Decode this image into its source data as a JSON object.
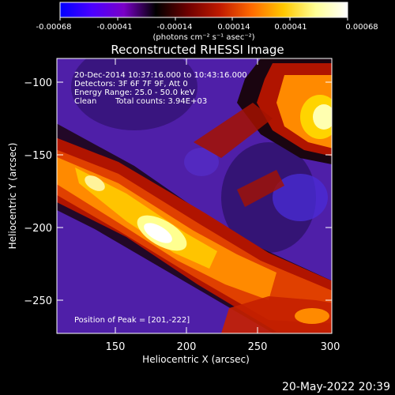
{
  "colorbar": {
    "ticks": [
      "-0.00068",
      "-0.00041",
      "-0.00014",
      "0.00014",
      "0.00041",
      "0.00068"
    ],
    "unit_label": "(photons cm⁻² s⁻¹ asec⁻²)",
    "colors": [
      "#0000ff",
      "#4b00ff",
      "#7a00c8",
      "#000000",
      "#6e0000",
      "#c01a00",
      "#ff6a00",
      "#ffc800",
      "#ffff96",
      "#ffffff"
    ]
  },
  "plot": {
    "title": "Reconstructed RHESSI Image",
    "xlabel": "Heliocentric X (arcsec)",
    "ylabel": "Heliocentric Y (arcsec)",
    "x_ticks": [
      "150",
      "200",
      "250",
      "300"
    ],
    "y_ticks": [
      "−100",
      "−150",
      "−200",
      "−250"
    ]
  },
  "annotations": {
    "line1": "20-Dec-2014 10:37:16.000 to 10:43:16.000",
    "line2": "Detectors: 3F 6F 7F 9F, Att 0",
    "line3": "Energy Range: 25.0 - 50.0 keV",
    "line4_label": "Clean",
    "line4_counts": "Total counts: 3.94E+03",
    "peak": "Position of Peak = [201,-222]"
  },
  "footer": {
    "timestamp": "20-May-2022 20:39"
  }
}
